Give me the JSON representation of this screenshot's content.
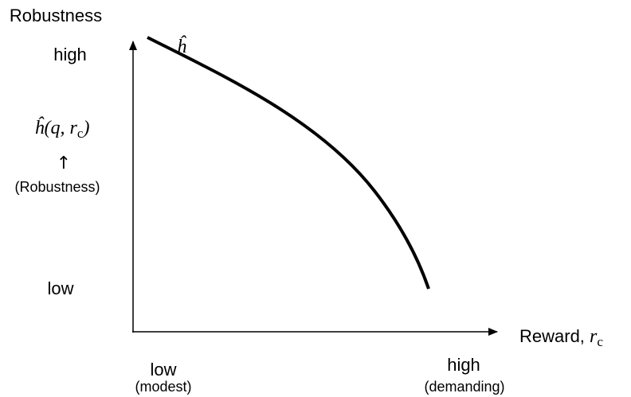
{
  "y_axis": {
    "title": "Robustness",
    "high": "high",
    "low": "low",
    "formula": {
      "base": "ĥ(q, r",
      "sub": "c",
      "tail": ")"
    },
    "arrow": "↑",
    "note": "(Robustness)"
  },
  "x_axis": {
    "title": "Reward, ",
    "symbol": {
      "base": "r",
      "sub": "c"
    },
    "low": "low",
    "low_note": "(modest)",
    "high": "high",
    "high_note": "(demanding)"
  },
  "curve": {
    "label": "ĥ"
  }
}
